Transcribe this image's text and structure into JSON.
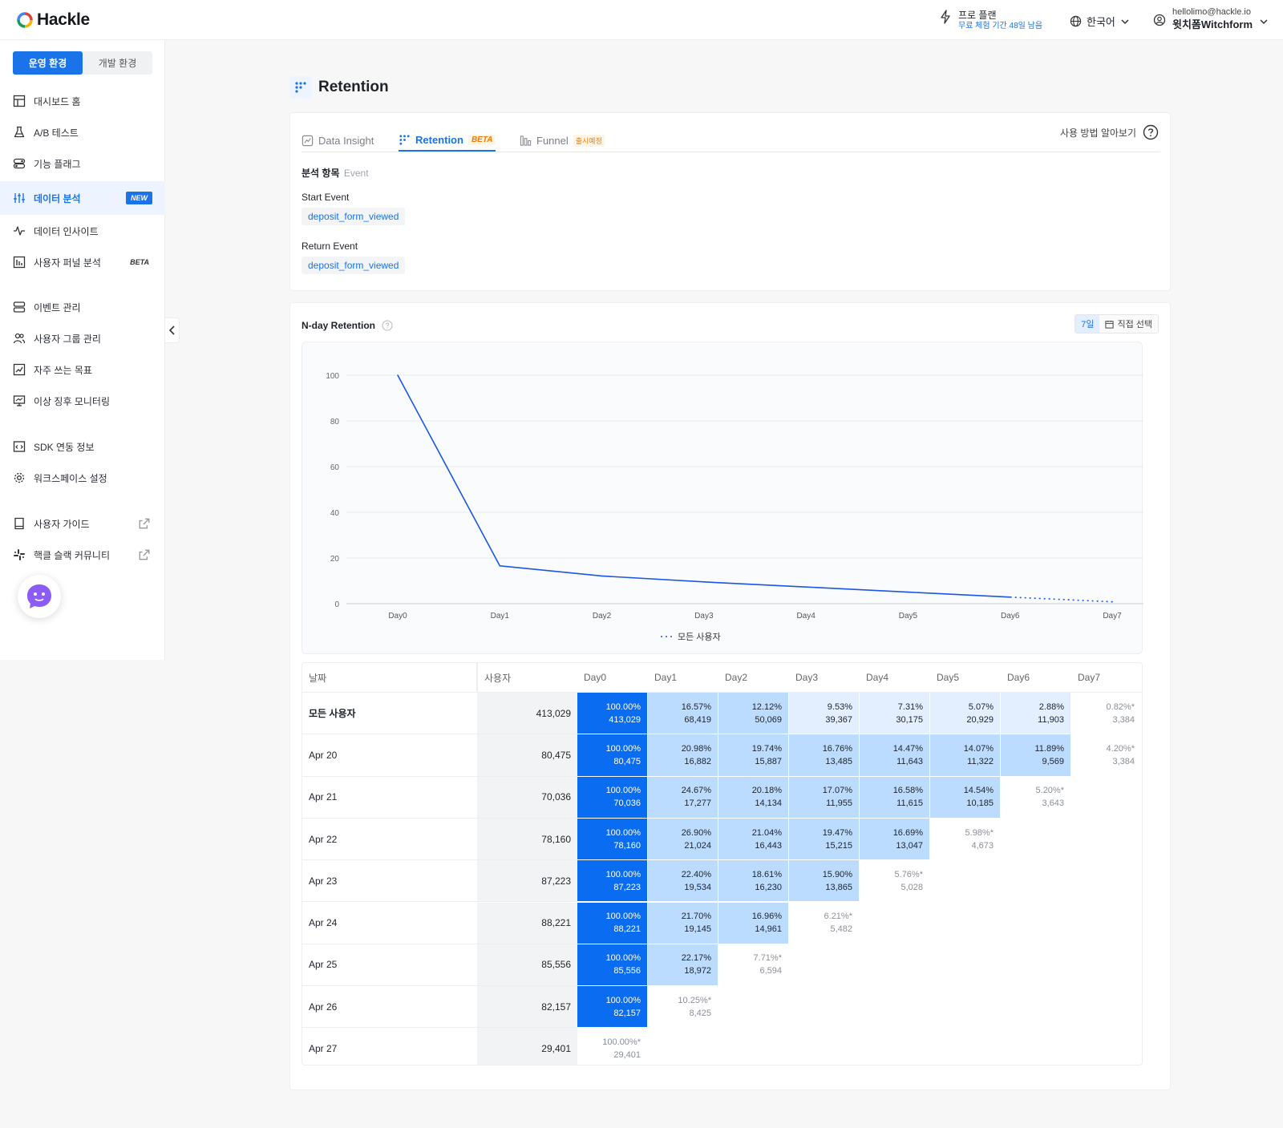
{
  "app": {
    "logo": "Hackle"
  },
  "topbar": {
    "plan_title": "프로 플랜",
    "plan_sub": "무료 체험 기간 48일 남음",
    "language": "한국어",
    "user_email": "hellolimo@hackle.io",
    "user_name": "윗치폼Witchform"
  },
  "sidebar": {
    "env_prod": "운영 환경",
    "env_dev": "개발 환경",
    "items": [
      {
        "label": "대시보드 홈",
        "icon": "dashboard-icon"
      },
      {
        "label": "A/B 테스트",
        "icon": "flask-icon"
      },
      {
        "label": "기능 플래그",
        "icon": "toggle-icon"
      },
      {
        "label": "데이터 분석",
        "icon": "sliders-icon",
        "badge": "NEW"
      },
      {
        "label": "데이터 인사이트",
        "icon": "pulse-icon"
      },
      {
        "label": "사용자 퍼널 분석",
        "icon": "bar-chart-icon",
        "badge": "BETA"
      },
      {
        "label": "이벤트 관리",
        "icon": "database-icon"
      },
      {
        "label": "사용자 그룹 관리",
        "icon": "users-icon"
      },
      {
        "label": "자주 쓰는 목표",
        "icon": "goal-chart-icon"
      },
      {
        "label": "이상 징후 모니터링",
        "icon": "monitor-icon"
      },
      {
        "label": "SDK 연동 정보",
        "icon": "code-icon"
      },
      {
        "label": "워크스페이스 설정",
        "icon": "gear-icon"
      },
      {
        "label": "사용자 가이드",
        "icon": "book-icon"
      },
      {
        "label": "핵클 슬랙 커뮤니티",
        "icon": "slack-icon"
      }
    ]
  },
  "page": {
    "title": "Retention"
  },
  "tabs": [
    {
      "label": "Data Insight"
    },
    {
      "label": "Retention",
      "tag": "BETA"
    },
    {
      "label": "Funnel",
      "tag": "출시예정"
    }
  ],
  "help_label": "사용 방법 알아보기",
  "analysis": {
    "title": "분석 항목",
    "sub": "Event",
    "start_label": "Start Event",
    "start_value": "deposit_form_viewed",
    "return_label": "Return Event",
    "return_value": "deposit_form_viewed"
  },
  "retention": {
    "title": "N-day Retention",
    "period_7": "7일",
    "period_custom": "직접 선택"
  },
  "chart_data": {
    "type": "line",
    "x": [
      "Day0",
      "Day1",
      "Day2",
      "Day3",
      "Day4",
      "Day5",
      "Day6",
      "Day7"
    ],
    "series": [
      {
        "name": "모든 사용자",
        "values": [
          100,
          16.57,
          12.12,
          9.53,
          7.31,
          5.07,
          2.88,
          0.82
        ],
        "color": "#1a56e8"
      }
    ],
    "y_ticks": [
      "0",
      "20",
      "40",
      "60",
      "80",
      "100"
    ],
    "ylim": [
      0,
      100
    ],
    "dotted_from": 6,
    "grid": true,
    "legend": "bottom"
  },
  "table": {
    "headers": [
      "날짜",
      "사용자",
      "Day0",
      "Day1",
      "Day2",
      "Day3",
      "Day4",
      "Day5",
      "Day6",
      "Day7"
    ],
    "rows": [
      {
        "label": "모든 사용자",
        "users": "413,029",
        "cells": [
          [
            "100.00%",
            "413,029"
          ],
          [
            "16.57%",
            "68,419"
          ],
          [
            "12.12%",
            "50,069"
          ],
          [
            "9.53%",
            "39,367"
          ],
          [
            "7.31%",
            "30,175"
          ],
          [
            "5.07%",
            "20,929"
          ],
          [
            "2.88%",
            "11,903"
          ],
          [
            "0.82%*",
            "3,384"
          ]
        ]
      },
      {
        "label": "Apr 20",
        "users": "80,475",
        "cells": [
          [
            "100.00%",
            "80,475"
          ],
          [
            "20.98%",
            "16,882"
          ],
          [
            "19.74%",
            "15,887"
          ],
          [
            "16.76%",
            "13,485"
          ],
          [
            "14.47%",
            "11,643"
          ],
          [
            "14.07%",
            "11,322"
          ],
          [
            "11.89%",
            "9,569"
          ],
          [
            "4.20%*",
            "3,384"
          ]
        ]
      },
      {
        "label": "Apr 21",
        "users": "70,036",
        "cells": [
          [
            "100.00%",
            "70,036"
          ],
          [
            "24.67%",
            "17,277"
          ],
          [
            "20.18%",
            "14,134"
          ],
          [
            "17.07%",
            "11,955"
          ],
          [
            "16.58%",
            "11,615"
          ],
          [
            "14.54%",
            "10,185"
          ],
          [
            "5.20%*",
            "3,643"
          ]
        ]
      },
      {
        "label": "Apr 22",
        "users": "78,160",
        "cells": [
          [
            "100.00%",
            "78,160"
          ],
          [
            "26.90%",
            "21,024"
          ],
          [
            "21.04%",
            "16,443"
          ],
          [
            "19.47%",
            "15,215"
          ],
          [
            "16.69%",
            "13,047"
          ],
          [
            "5.98%*",
            "4,673"
          ]
        ]
      },
      {
        "label": "Apr 23",
        "users": "87,223",
        "cells": [
          [
            "100.00%",
            "87,223"
          ],
          [
            "22.40%",
            "19,534"
          ],
          [
            "18.61%",
            "16,230"
          ],
          [
            "15.90%",
            "13,865"
          ],
          [
            "5.76%*",
            "5,028"
          ]
        ]
      },
      {
        "label": "Apr 24",
        "users": "88,221",
        "cells": [
          [
            "100.00%",
            "88,221"
          ],
          [
            "21.70%",
            "19,145"
          ],
          [
            "16.96%",
            "14,961"
          ],
          [
            "6.21%*",
            "5,482"
          ]
        ]
      },
      {
        "label": "Apr 25",
        "users": "85,556",
        "cells": [
          [
            "100.00%",
            "85,556"
          ],
          [
            "22.17%",
            "18,972"
          ],
          [
            "7.71%*",
            "6,594"
          ]
        ]
      },
      {
        "label": "Apr 26",
        "users": "82,157",
        "cells": [
          [
            "100.00%",
            "82,157"
          ],
          [
            "10.25%*",
            "8,425"
          ]
        ]
      },
      {
        "label": "Apr 27",
        "users": "29,401",
        "cells": [
          [
            "100.00%*",
            "29,401"
          ]
        ]
      }
    ]
  },
  "colors": {
    "accent": "#1a73e8",
    "day0": "#0a6cf0",
    "high": "#bcdcff",
    "low": "#e3efff"
  }
}
